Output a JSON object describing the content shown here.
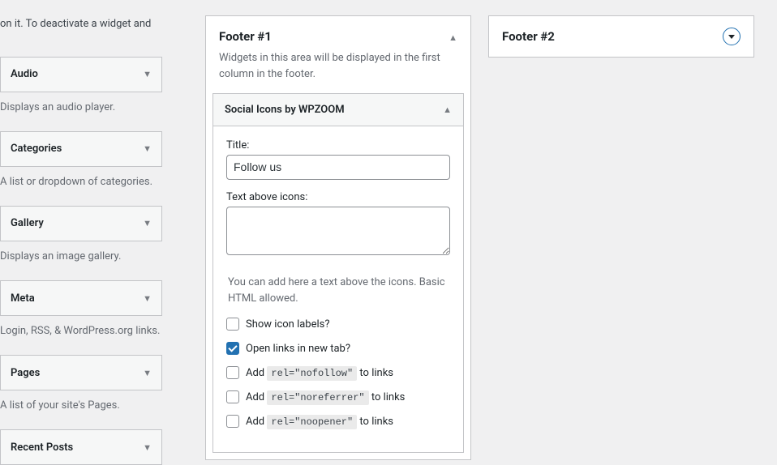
{
  "left": {
    "info_text": "on it. To deactivate a widget and",
    "widgets": [
      {
        "title": "Audio",
        "description": "Displays an audio player."
      },
      {
        "title": "Categories",
        "description": "A list or dropdown of categories."
      },
      {
        "title": "Gallery",
        "description": "Displays an image gallery."
      },
      {
        "title": "Meta",
        "description": "Login, RSS, & WordPress.org links."
      },
      {
        "title": "Pages",
        "description": "A list of your site's Pages."
      },
      {
        "title": "Recent Posts",
        "description": ""
      }
    ]
  },
  "footer1": {
    "title": "Footer #1",
    "description": "Widgets in this area will be displayed in the first column in the footer.",
    "widget": {
      "name": "Social Icons by WPZOOM",
      "title_label": "Title:",
      "title_value": "Follow us",
      "text_above_label": "Text above icons:",
      "text_above_value": "",
      "help_text": "You can add here a text above the icons. Basic HTML allowed.",
      "checkboxes": {
        "show_labels": {
          "label": "Show icon labels?",
          "checked": false
        },
        "new_tab": {
          "label": "Open links in new tab?",
          "checked": true
        },
        "nofollow": {
          "prefix": "Add ",
          "code": "rel=\"nofollow\"",
          "suffix": " to links",
          "checked": false
        },
        "noreferrer": {
          "prefix": "Add ",
          "code": "rel=\"noreferrer\"",
          "suffix": " to links",
          "checked": false
        },
        "noopener": {
          "prefix": "Add ",
          "code": "rel=\"noopener\"",
          "suffix": " to links",
          "checked": false
        }
      }
    }
  },
  "footer2": {
    "title": "Footer #2"
  },
  "colors": {
    "background": "#f0f0f1",
    "border": "#c3c4c7",
    "panel_bg": "#ffffff",
    "header_bg": "#f6f7f7",
    "text": "#1d2327",
    "muted": "#646970",
    "accent": "#2271b1",
    "code_bg": "#eaeaea"
  }
}
